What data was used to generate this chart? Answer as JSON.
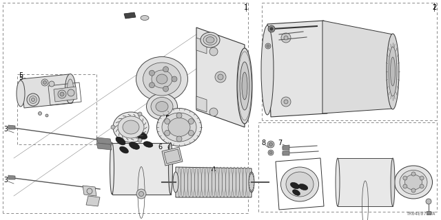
{
  "bg_color": "#ffffff",
  "fig_width": 6.4,
  "fig_height": 3.2,
  "dpi": 100,
  "diagram_code": "TR04E0710A",
  "line_color": "#333333",
  "dashed_color": "#888888",
  "label_fontsize": 7,
  "diagram_fontsize": 5,
  "gray_light": "#e8e8e8",
  "gray_mid": "#cccccc",
  "gray_dark": "#aaaaaa",
  "black": "#111111"
}
